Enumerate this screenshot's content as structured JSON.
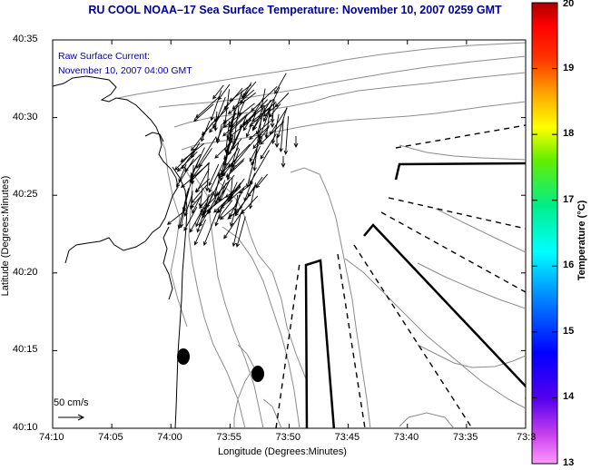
{
  "title": "RU COOL  NOAA–17  Sea Surface Temperature:  November 10, 2007 0259 GMT",
  "current_note": {
    "line1": "Raw Surface Current:",
    "line2": "November 10, 2007 04:00 GMT"
  },
  "axes": {
    "xlabel": "Longitude (Degrees:Minutes)",
    "ylabel": "Latitude (Degrees:Minutes)",
    "x_ticks": [
      "74:10",
      "74:05",
      "74:00",
      "73:55",
      "73:50",
      "73:45",
      "73:40",
      "73:35",
      "73:3"
    ],
    "y_ticks": [
      "40:35",
      "40:30",
      "40:25",
      "40:20",
      "40:15",
      "40:10"
    ]
  },
  "colorbar": {
    "label": "Temperature (°C)",
    "ticks": [
      "20",
      "19",
      "18",
      "17",
      "16",
      "15",
      "14",
      "13"
    ],
    "min": 13,
    "max": 20
  },
  "scale_vector": {
    "label": "50 cm/s"
  },
  "colors": {
    "title_text": "#000099",
    "contour": "#888888",
    "coast": "#000000"
  }
}
